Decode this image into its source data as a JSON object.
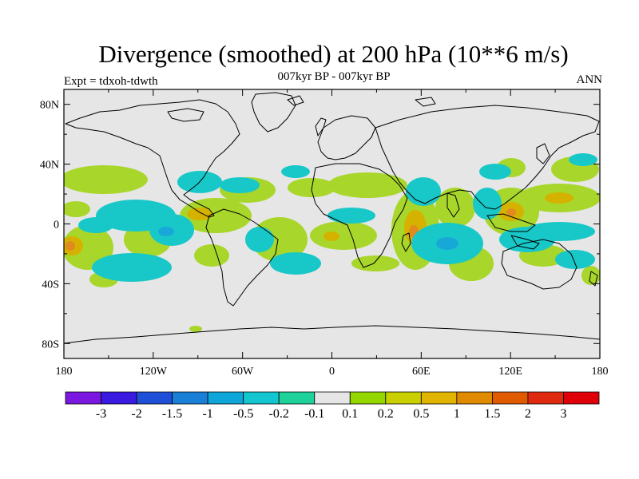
{
  "header": {
    "title": "Divergence (smoothed) at 200 hPa (10**6 m/s)",
    "experiment": "Expt = tdxoh-tdwth",
    "period": "007kyr BP - 007kyr BP",
    "season": "ANN"
  },
  "map": {
    "lat_labels": [
      "80N",
      "40N",
      "0",
      "40S",
      "80S"
    ],
    "lat_values": [
      80,
      40,
      0,
      -40,
      -80
    ],
    "lon_labels": [
      "180",
      "120W",
      "60W",
      "0",
      "60E",
      "120E",
      "180"
    ],
    "lon_values": [
      -180,
      -120,
      -60,
      0,
      60,
      120,
      180
    ],
    "lon_range": [
      -180,
      180
    ],
    "lat_range": [
      -90,
      90
    ],
    "ocean_color": "#e6e6e6"
  },
  "colorbar": {
    "labels": [
      "-3",
      "-2",
      "-1.5",
      "-1",
      "-0.5",
      "-0.2",
      "-0.1",
      "0.1",
      "0.2",
      "0.5",
      "1",
      "1.5",
      "2",
      "3"
    ],
    "colors": [
      "#7a18e0",
      "#3a1ae0",
      "#1f4fd6",
      "#1a7fd6",
      "#0ea5d8",
      "#12c5cf",
      "#1ed09a",
      "#e6e6e6",
      "#94d600",
      "#c9cf00",
      "#e0b400",
      "#e08a00",
      "#e05a00",
      "#e02a10",
      "#e0000a"
    ]
  },
  "features": {
    "positive_color": "#a8d62a",
    "positive_core_color": "#d6b200",
    "positive_max_color": "#e08a20",
    "negative_color": "#18c8c8",
    "negative_core_color": "#18a8d8"
  }
}
